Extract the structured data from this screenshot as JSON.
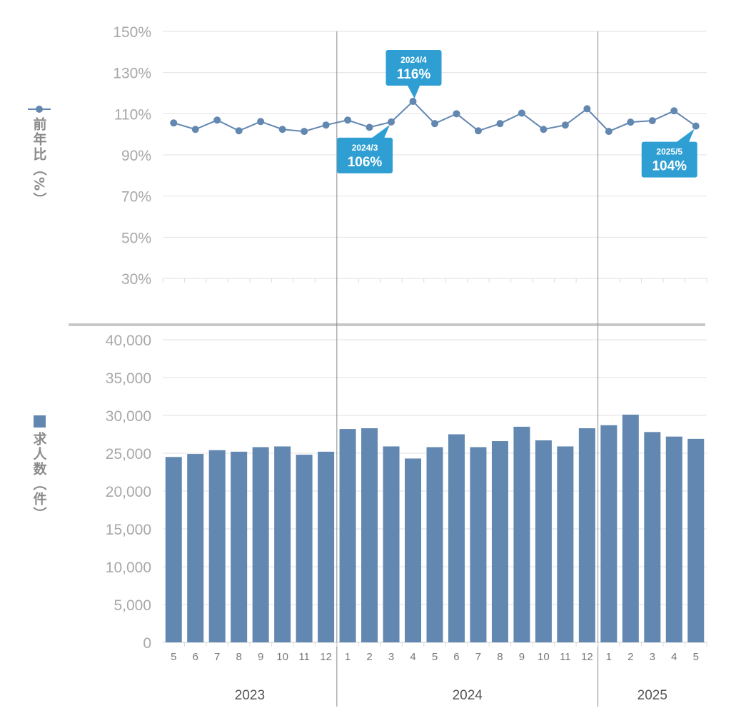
{
  "chart_data": [
    {
      "type": "line",
      "title": "",
      "ylabel": "前年比（%）",
      "ylim": [
        30,
        150
      ],
      "yticks": [
        "150%",
        "130%",
        "110%",
        "90%",
        "70%",
        "50%",
        "30%"
      ],
      "ytick_values": [
        150,
        130,
        110,
        90,
        70,
        50,
        30
      ],
      "series": [
        {
          "name": "前年比（%）",
          "color": "#6287b0",
          "values": [
            105.5,
            102.4,
            106.9,
            101.7,
            106.2,
            102.4,
            101.4,
            104.5,
            106.9,
            103.4,
            106,
            116,
            105.2,
            110,
            101.7,
            105.2,
            110.3,
            102.4,
            104.5,
            112.4,
            101.4,
            105.9,
            106.6,
            111.4,
            104
          ]
        }
      ],
      "annotations": [
        {
          "index": 10,
          "label": "2024/3",
          "value": "106%",
          "placement": "below-left"
        },
        {
          "index": 11,
          "label": "2024/4",
          "value": "116%",
          "placement": "above"
        },
        {
          "index": 24,
          "label": "2025/5",
          "value": "104%",
          "placement": "below-left"
        }
      ],
      "annotation_color": "#2f9fd3"
    },
    {
      "type": "bar",
      "ylabel": "求人数（件）",
      "ylim": [
        0,
        40000
      ],
      "yticks": [
        "40,000",
        "35,000",
        "30,000",
        "25,000",
        "20,000",
        "15,000",
        "10,000",
        "5,000",
        "0"
      ],
      "ytick_values": [
        40000,
        35000,
        30000,
        25000,
        20000,
        15000,
        10000,
        5000,
        0
      ],
      "series": [
        {
          "name": "求人数（件）",
          "color": "#6287b0",
          "values": [
            24500,
            24900,
            25400,
            25200,
            25800,
            25900,
            24800,
            25200,
            28200,
            28300,
            25900,
            24300,
            25800,
            27500,
            25800,
            26600,
            28500,
            26700,
            25900,
            28300,
            28700,
            30100,
            27800,
            27200,
            26900
          ]
        }
      ]
    }
  ],
  "categories": [
    "5",
    "6",
    "7",
    "8",
    "9",
    "10",
    "11",
    "12",
    "1",
    "2",
    "3",
    "4",
    "5",
    "6",
    "7",
    "8",
    "9",
    "10",
    "11",
    "12",
    "1",
    "2",
    "3",
    "4",
    "5"
  ],
  "years": [
    {
      "label": "2023",
      "start": 0,
      "end": 7
    },
    {
      "label": "2024",
      "start": 8,
      "end": 19
    },
    {
      "label": "2025",
      "start": 20,
      "end": 24
    }
  ],
  "legend": {
    "line_label": "前年比（%）",
    "bar_label": "求人数（件）"
  }
}
